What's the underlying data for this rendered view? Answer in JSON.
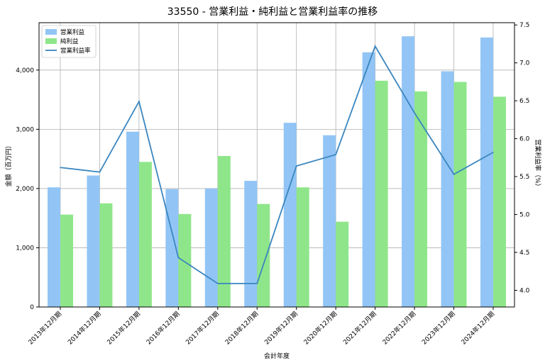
{
  "chart_data": {
    "type": "bar",
    "title": "33550 - 営業利益・純利益と営業利益率の推移",
    "xlabel": "会計年度",
    "ylabel": "金額（百万円）",
    "y2label": "営業利益率（%）",
    "categories": [
      "2013年12月期",
      "2014年12月期",
      "2015年12月期",
      "2016年12月期",
      "2017年12月期",
      "2018年12月期",
      "2019年12月期",
      "2020年12月期",
      "2021年12月期",
      "2022年12月期",
      "2023年12月期",
      "2024年12月期"
    ],
    "series": [
      {
        "name": "営業利益",
        "kind": "bar",
        "axis": "left",
        "color": "#92c5f5",
        "values": [
          2020,
          2220,
          2960,
          1990,
          2000,
          2130,
          3110,
          2900,
          4300,
          4570,
          3980,
          4550
        ]
      },
      {
        "name": "純利益",
        "kind": "bar",
        "axis": "left",
        "color": "#8fe68a",
        "values": [
          1560,
          1750,
          2450,
          1570,
          2550,
          1740,
          2020,
          1440,
          3820,
          3640,
          3800,
          3550
        ]
      },
      {
        "name": "営業利益率",
        "kind": "line",
        "axis": "right",
        "color": "#3a86c0",
        "values": [
          5.62,
          5.56,
          6.49,
          4.43,
          4.09,
          4.09,
          5.64,
          5.79,
          7.22,
          6.34,
          5.53,
          5.82
        ]
      }
    ],
    "ylim": [
      0,
      4800
    ],
    "y_ticks": [
      0,
      1000,
      2000,
      3000,
      4000
    ],
    "y_tick_labels": [
      "0",
      "1,000",
      "2,000",
      "3,000",
      "4,000"
    ],
    "y2lim": [
      3.78,
      7.53
    ],
    "y2_ticks": [
      4.0,
      4.5,
      5.0,
      5.5,
      6.0,
      6.5,
      7.0,
      7.5
    ],
    "y2_tick_labels": [
      "4.0",
      "4.5",
      "5.0",
      "5.5",
      "6.0",
      "6.5",
      "7.0",
      "7.5"
    ],
    "grid": true,
    "legend_position": "top-left"
  }
}
